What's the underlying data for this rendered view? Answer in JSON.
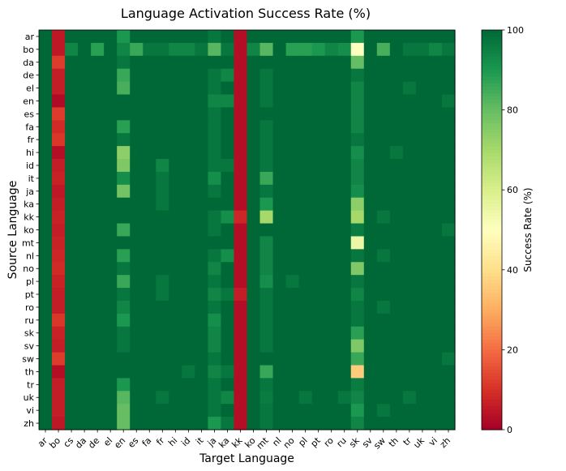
{
  "chart_data": {
    "type": "heatmap",
    "title": "Language Activation Success Rate (%)",
    "xlabel": "Target Language",
    "ylabel": "Source Language",
    "rows": [
      "ar",
      "bo",
      "da",
      "de",
      "el",
      "en",
      "es",
      "fa",
      "fr",
      "hi",
      "id",
      "it",
      "ja",
      "ka",
      "kk",
      "ko",
      "mt",
      "nl",
      "no",
      "pl",
      "pt",
      "ro",
      "ru",
      "sk",
      "sv",
      "sw",
      "th",
      "tr",
      "uk",
      "vi",
      "zh"
    ],
    "cols": [
      "ar",
      "bo",
      "cs",
      "da",
      "de",
      "el",
      "en",
      "es",
      "fa",
      "fr",
      "hi",
      "id",
      "it",
      "ja",
      "ka",
      "kk",
      "ko",
      "mt",
      "nl",
      "no",
      "pl",
      "pt",
      "ro",
      "ru",
      "sk",
      "sv",
      "sw",
      "th",
      "tr",
      "uk",
      "vi",
      "zh"
    ],
    "values": [
      [
        100,
        5,
        100,
        100,
        100,
        100,
        90,
        100,
        100,
        100,
        100,
        100,
        100,
        97,
        100,
        3,
        100,
        100,
        100,
        100,
        100,
        100,
        100,
        100,
        90,
        100,
        100,
        100,
        100,
        100,
        100,
        100
      ],
      [
        100,
        5,
        94,
        100,
        88,
        100,
        94,
        86,
        97,
        97,
        94,
        94,
        97,
        82,
        97,
        3,
        94,
        82,
        100,
        88,
        88,
        90,
        94,
        92,
        50,
        100,
        84,
        100,
        97,
        97,
        94,
        97
      ],
      [
        100,
        12,
        100,
        100,
        100,
        100,
        97,
        100,
        100,
        100,
        100,
        100,
        100,
        100,
        100,
        3,
        100,
        100,
        100,
        100,
        100,
        100,
        100,
        100,
        80,
        100,
        100,
        100,
        100,
        100,
        100,
        100
      ],
      [
        100,
        6,
        100,
        100,
        100,
        100,
        86,
        100,
        100,
        100,
        100,
        100,
        100,
        97,
        94,
        3,
        100,
        97,
        100,
        100,
        100,
        100,
        100,
        100,
        97,
        100,
        100,
        100,
        100,
        100,
        100,
        100
      ],
      [
        100,
        6,
        100,
        100,
        100,
        100,
        84,
        100,
        100,
        100,
        100,
        100,
        100,
        97,
        100,
        3,
        100,
        97,
        100,
        100,
        100,
        100,
        100,
        100,
        94,
        100,
        100,
        100,
        97,
        100,
        100,
        100
      ],
      [
        100,
        2,
        100,
        100,
        100,
        100,
        100,
        100,
        100,
        100,
        100,
        100,
        100,
        94,
        94,
        3,
        100,
        97,
        100,
        100,
        100,
        100,
        100,
        100,
        94,
        100,
        100,
        100,
        100,
        100,
        100,
        97
      ],
      [
        100,
        12,
        100,
        100,
        100,
        100,
        100,
        100,
        100,
        100,
        100,
        100,
        100,
        97,
        100,
        3,
        100,
        100,
        100,
        100,
        100,
        100,
        100,
        100,
        94,
        100,
        100,
        100,
        100,
        100,
        100,
        100
      ],
      [
        100,
        9,
        100,
        100,
        100,
        100,
        88,
        100,
        100,
        100,
        100,
        100,
        100,
        97,
        100,
        3,
        100,
        97,
        100,
        100,
        100,
        100,
        100,
        100,
        94,
        100,
        100,
        100,
        100,
        100,
        100,
        100
      ],
      [
        100,
        11,
        100,
        100,
        100,
        100,
        97,
        100,
        100,
        100,
        100,
        100,
        100,
        97,
        100,
        3,
        100,
        97,
        100,
        100,
        100,
        100,
        100,
        100,
        97,
        100,
        100,
        100,
        100,
        100,
        100,
        100
      ],
      [
        100,
        3,
        100,
        100,
        100,
        100,
        74,
        100,
        100,
        100,
        100,
        100,
        100,
        97,
        100,
        3,
        100,
        97,
        100,
        100,
        100,
        100,
        100,
        100,
        92,
        100,
        100,
        97,
        100,
        100,
        100,
        100
      ],
      [
        100,
        6,
        100,
        100,
        100,
        100,
        76,
        100,
        100,
        94,
        100,
        100,
        100,
        97,
        97,
        3,
        100,
        97,
        100,
        100,
        100,
        100,
        100,
        100,
        94,
        100,
        100,
        100,
        100,
        100,
        100,
        100
      ],
      [
        100,
        7,
        100,
        100,
        100,
        100,
        92,
        100,
        100,
        97,
        100,
        100,
        100,
        92,
        100,
        3,
        100,
        86,
        100,
        100,
        100,
        100,
        100,
        100,
        94,
        100,
        100,
        100,
        100,
        100,
        100,
        100
      ],
      [
        100,
        5,
        100,
        100,
        100,
        100,
        78,
        100,
        100,
        97,
        100,
        100,
        100,
        97,
        100,
        3,
        100,
        97,
        100,
        100,
        100,
        100,
        100,
        100,
        92,
        100,
        100,
        100,
        100,
        100,
        100,
        100
      ],
      [
        100,
        6,
        100,
        100,
        100,
        100,
        100,
        100,
        100,
        97,
        100,
        100,
        100,
        100,
        100,
        3,
        100,
        90,
        100,
        100,
        100,
        100,
        100,
        100,
        74,
        100,
        100,
        100,
        100,
        100,
        100,
        100
      ],
      [
        100,
        7,
        100,
        100,
        100,
        100,
        100,
        100,
        100,
        100,
        100,
        100,
        100,
        97,
        92,
        8,
        100,
        70,
        100,
        100,
        100,
        100,
        100,
        100,
        70,
        100,
        97,
        100,
        100,
        100,
        100,
        100
      ],
      [
        100,
        6,
        100,
        100,
        100,
        100,
        86,
        100,
        100,
        100,
        100,
        100,
        100,
        97,
        100,
        3,
        100,
        100,
        100,
        100,
        100,
        100,
        100,
        100,
        96,
        100,
        100,
        100,
        100,
        100,
        100,
        97
      ],
      [
        100,
        7,
        100,
        100,
        100,
        100,
        100,
        100,
        100,
        100,
        100,
        100,
        100,
        100,
        100,
        3,
        100,
        94,
        100,
        100,
        100,
        100,
        100,
        100,
        55,
        100,
        100,
        100,
        100,
        100,
        100,
        100
      ],
      [
        100,
        8,
        100,
        100,
        100,
        100,
        88,
        100,
        100,
        100,
        100,
        100,
        100,
        97,
        92,
        3,
        100,
        94,
        100,
        100,
        100,
        100,
        100,
        100,
        97,
        100,
        97,
        100,
        100,
        100,
        100,
        100
      ],
      [
        100,
        9,
        100,
        100,
        100,
        100,
        97,
        100,
        100,
        100,
        100,
        100,
        100,
        94,
        100,
        3,
        100,
        94,
        100,
        100,
        100,
        100,
        100,
        100,
        76,
        100,
        100,
        100,
        100,
        100,
        100,
        100
      ],
      [
        100,
        7,
        100,
        100,
        100,
        100,
        86,
        100,
        100,
        97,
        100,
        100,
        100,
        97,
        100,
        3,
        100,
        92,
        100,
        97,
        100,
        100,
        100,
        100,
        97,
        100,
        100,
        100,
        100,
        100,
        100,
        100
      ],
      [
        100,
        6,
        100,
        100,
        100,
        100,
        97,
        100,
        100,
        97,
        100,
        100,
        100,
        94,
        97,
        6,
        100,
        97,
        100,
        100,
        100,
        100,
        100,
        100,
        94,
        100,
        100,
        100,
        100,
        100,
        100,
        100
      ],
      [
        100,
        6,
        100,
        100,
        100,
        100,
        94,
        100,
        100,
        100,
        100,
        100,
        100,
        97,
        100,
        3,
        100,
        97,
        100,
        100,
        100,
        100,
        100,
        100,
        97,
        100,
        97,
        100,
        100,
        100,
        100,
        100
      ],
      [
        100,
        11,
        100,
        100,
        100,
        100,
        90,
        100,
        100,
        100,
        100,
        100,
        100,
        92,
        100,
        3,
        100,
        97,
        100,
        100,
        100,
        100,
        100,
        100,
        97,
        100,
        100,
        100,
        100,
        100,
        100,
        100
      ],
      [
        100,
        7,
        100,
        100,
        100,
        100,
        97,
        100,
        100,
        100,
        100,
        100,
        100,
        94,
        100,
        3,
        100,
        97,
        100,
        100,
        100,
        100,
        100,
        100,
        88,
        100,
        100,
        100,
        100,
        100,
        100,
        100
      ],
      [
        100,
        6,
        100,
        100,
        100,
        100,
        97,
        100,
        100,
        100,
        100,
        100,
        100,
        94,
        100,
        3,
        100,
        97,
        100,
        100,
        100,
        100,
        100,
        100,
        76,
        100,
        100,
        100,
        100,
        100,
        100,
        100
      ],
      [
        100,
        12,
        100,
        100,
        100,
        100,
        100,
        100,
        100,
        100,
        100,
        100,
        100,
        97,
        100,
        3,
        100,
        100,
        100,
        100,
        100,
        100,
        100,
        100,
        86,
        100,
        100,
        100,
        100,
        100,
        100,
        97
      ],
      [
        100,
        3,
        100,
        100,
        100,
        100,
        100,
        100,
        100,
        100,
        100,
        97,
        100,
        94,
        97,
        3,
        100,
        86,
        100,
        100,
        100,
        100,
        100,
        100,
        36,
        100,
        100,
        100,
        100,
        100,
        100,
        100
      ],
      [
        100,
        6,
        100,
        100,
        100,
        100,
        90,
        100,
        100,
        100,
        100,
        100,
        100,
        97,
        100,
        3,
        100,
        97,
        100,
        100,
        100,
        100,
        100,
        100,
        96,
        100,
        100,
        100,
        100,
        100,
        100,
        100
      ],
      [
        100,
        6,
        100,
        100,
        100,
        100,
        82,
        100,
        100,
        97,
        100,
        100,
        100,
        97,
        94,
        3,
        100,
        96,
        100,
        100,
        97,
        100,
        100,
        97,
        94,
        100,
        100,
        100,
        97,
        100,
        100,
        100
      ],
      [
        100,
        6,
        100,
        100,
        100,
        100,
        80,
        100,
        100,
        100,
        100,
        100,
        100,
        97,
        100,
        3,
        100,
        97,
        100,
        100,
        100,
        100,
        100,
        100,
        90,
        100,
        97,
        100,
        100,
        100,
        100,
        100
      ],
      [
        100,
        5,
        100,
        100,
        100,
        100,
        80,
        100,
        100,
        100,
        100,
        100,
        100,
        90,
        97,
        3,
        100,
        97,
        100,
        100,
        100,
        100,
        100,
        100,
        94,
        100,
        100,
        100,
        100,
        100,
        100,
        100
      ]
    ],
    "vmin": 0,
    "vmax": 100,
    "colormap": "RdYlGn",
    "colorbar": {
      "label": "Success Rate (%)",
      "ticks": [
        0,
        20,
        40,
        60,
        80,
        100
      ]
    }
  }
}
